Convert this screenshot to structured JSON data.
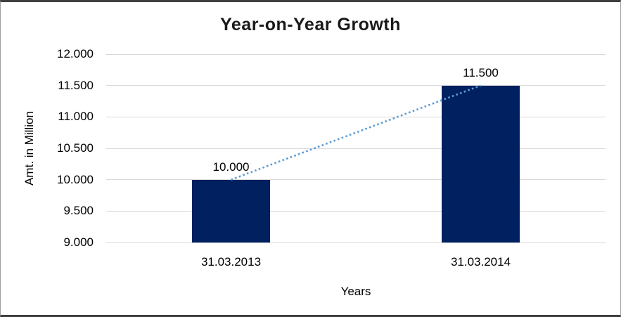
{
  "window": {
    "background": "#FFFFFF",
    "frame_border_dark": "#3f3f3f",
    "frame_border_light": "#9e9e9e"
  },
  "chart_data": {
    "type": "bar",
    "title": "Year-on-Year Growth",
    "xlabel": "Years",
    "ylabel": "Amt. in Million",
    "categories": [
      "31.03.2013",
      "31.03.2014"
    ],
    "values": [
      10.0,
      11.5
    ],
    "data_labels": [
      "10.000",
      "11.500"
    ],
    "y_ticks": [
      {
        "value": 12.0,
        "label": "12.000"
      },
      {
        "value": 11.5,
        "label": "11.500"
      },
      {
        "value": 11.0,
        "label": "11.000"
      },
      {
        "value": 10.5,
        "label": "10.500"
      },
      {
        "value": 10.0,
        "label": "10.000"
      },
      {
        "value": 9.5,
        "label": "9.500"
      },
      {
        "value": 9.0,
        "label": "9.000"
      }
    ],
    "ylim": [
      9.0,
      12.0
    ],
    "grid": true,
    "legend": false,
    "bar_color": "#002060",
    "gridline_color": "#D9D9D9",
    "text_color": "#000000",
    "title_color": "#1A1A1A",
    "trendline": {
      "type": "linear",
      "style": "dotted",
      "color": "#5B9BD5",
      "connects": "top centers of the two bars"
    }
  }
}
